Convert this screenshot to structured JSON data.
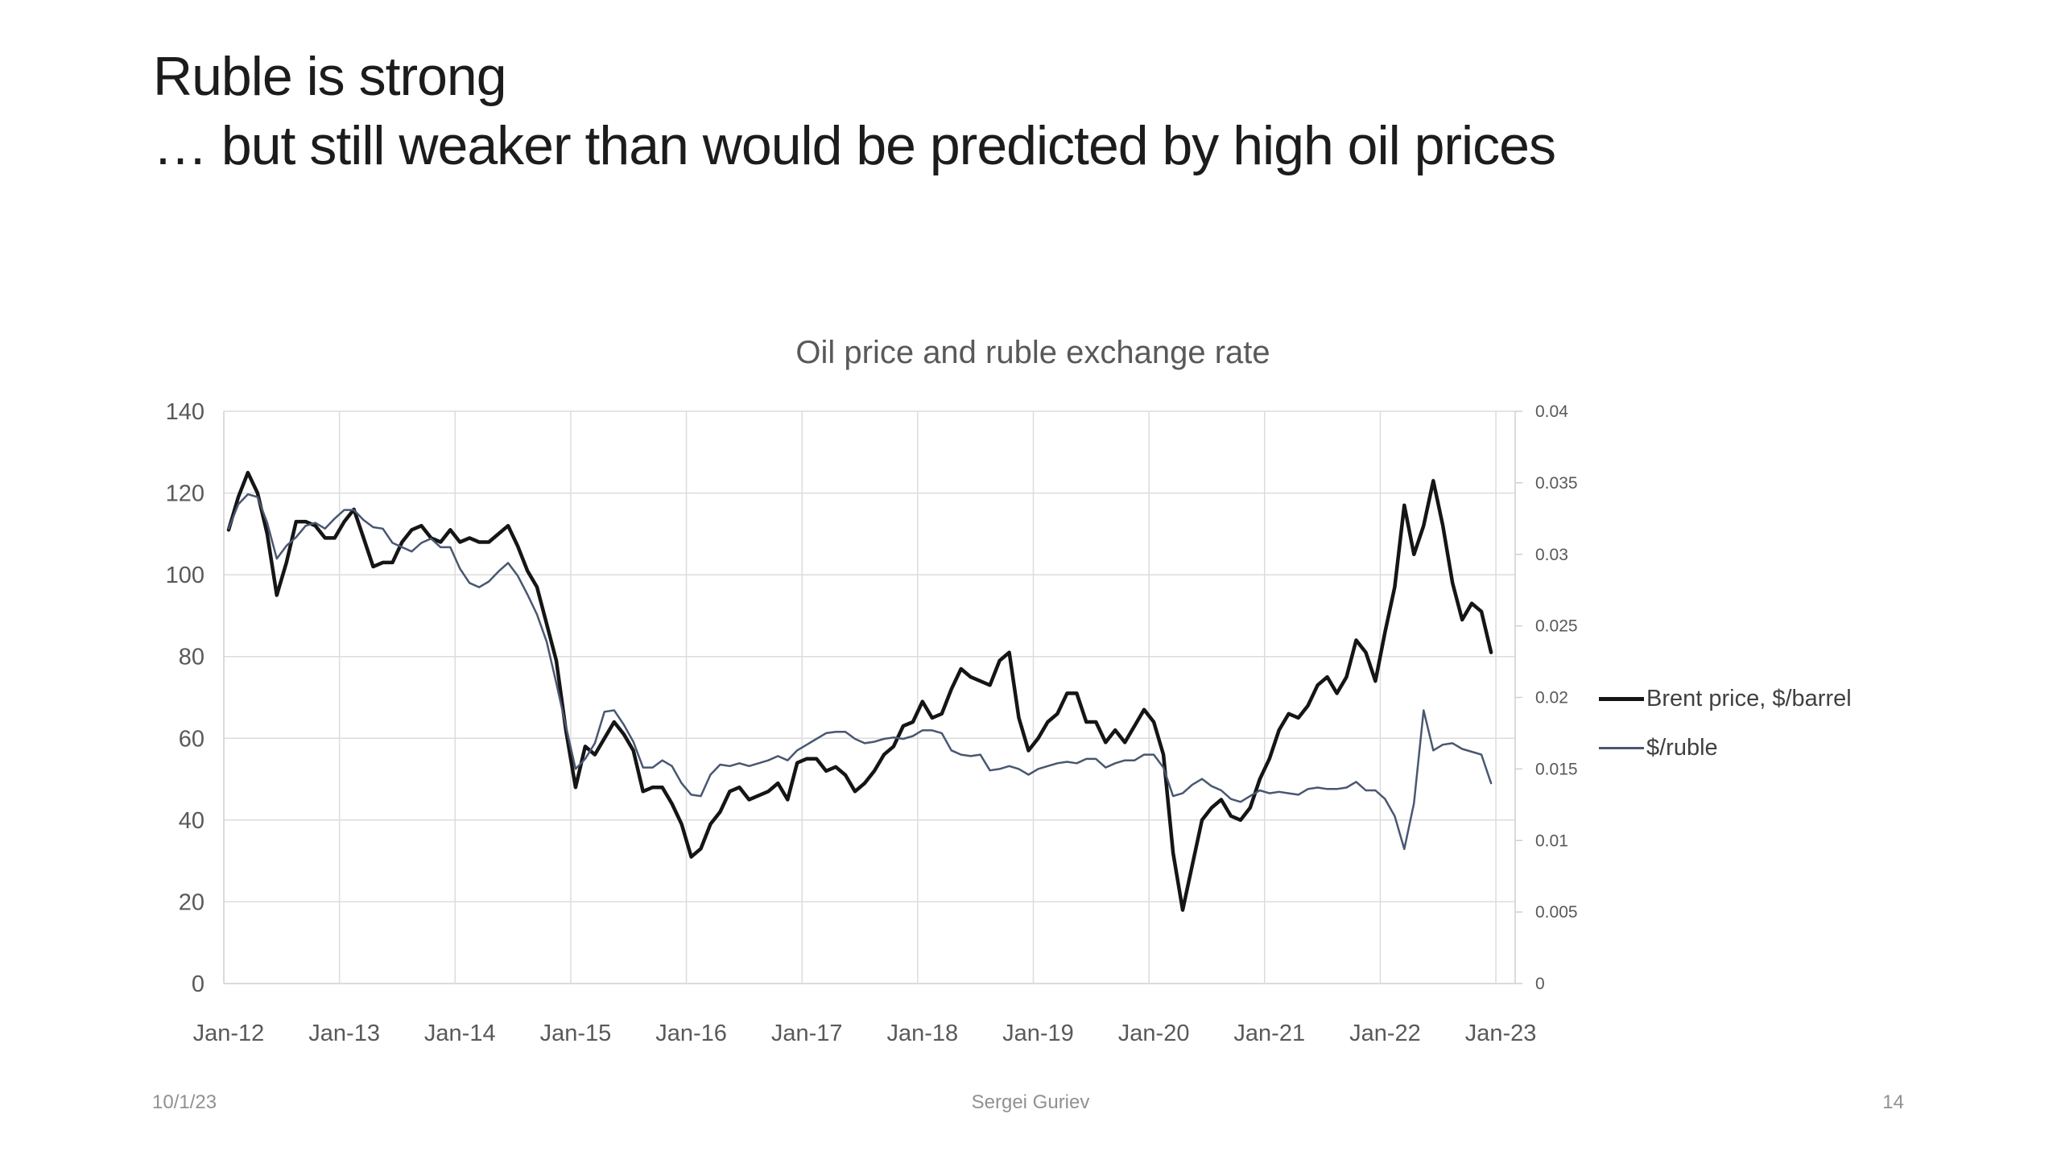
{
  "slide": {
    "title_line1": "Ruble is strong",
    "title_line2": "… but still weaker than would be predicted by high oil prices",
    "footer": {
      "date": "10/1/23",
      "author": "Sergei Guriev",
      "page": "14"
    }
  },
  "chart_data": {
    "type": "line",
    "title": "Oil price and ruble exchange rate",
    "grid": true,
    "legend_position": "right",
    "frequency": "monthly",
    "start_month": "2012-01",
    "end_month": "2022-12",
    "x_tick_labels": [
      "Jan-12",
      "Jan-13",
      "Jan-14",
      "Jan-15",
      "Jan-16",
      "Jan-17",
      "Jan-18",
      "Jan-19",
      "Jan-20",
      "Jan-21",
      "Jan-22",
      "Jan-23"
    ],
    "left_axis": {
      "min": 0,
      "max": 140,
      "tick_values": [
        0,
        20,
        40,
        60,
        80,
        100,
        120,
        140
      ],
      "tick_labels": [
        "0",
        "20",
        "40",
        "60",
        "80",
        "100",
        "120",
        "140"
      ]
    },
    "right_axis": {
      "min": 0,
      "max": 0.04,
      "tick_values": [
        0,
        0.005,
        0.01,
        0.015,
        0.02,
        0.025,
        0.03,
        0.035,
        0.04
      ],
      "tick_labels": [
        "0",
        "0.005",
        "0.01",
        "0.015",
        "0.02",
        "0.025",
        "0.03",
        "0.035",
        "0.04"
      ]
    },
    "series": [
      {
        "name": "Brent price, $/barrel",
        "axis": "left",
        "color": "#151515",
        "width": 4.5,
        "values": [
          111,
          119,
          125,
          120,
          110,
          95,
          103,
          113,
          113,
          112,
          109,
          109,
          113,
          116,
          109,
          102,
          103,
          103,
          108,
          111,
          112,
          109,
          108,
          111,
          108,
          109,
          108,
          108,
          110,
          112,
          107,
          101,
          97,
          88,
          79,
          62,
          48,
          58,
          56,
          60,
          64,
          61,
          57,
          47,
          48,
          48,
          44,
          39,
          31,
          33,
          39,
          42,
          47,
          48,
          45,
          46,
          47,
          49,
          45,
          54,
          55,
          55,
          52,
          53,
          51,
          47,
          49,
          52,
          56,
          58,
          63,
          64,
          69,
          65,
          66,
          72,
          77,
          75,
          74,
          73,
          79,
          81,
          65,
          57,
          60,
          64,
          66,
          71,
          71,
          64,
          64,
          59,
          62,
          59,
          63,
          67,
          64,
          56,
          32,
          18,
          29,
          40,
          43,
          45,
          41,
          40,
          43,
          50,
          55,
          62,
          66,
          65,
          68,
          73,
          75,
          71,
          75,
          84,
          81,
          74,
          86,
          97,
          117,
          105,
          112,
          123,
          112,
          98,
          89,
          93,
          91,
          81
        ]
      },
      {
        "name": "$/ruble",
        "axis": "right",
        "color": "#495771",
        "width": 2.5,
        "values": [
          0.0318,
          0.0335,
          0.0342,
          0.034,
          0.0322,
          0.0297,
          0.0306,
          0.0312,
          0.032,
          0.0322,
          0.0318,
          0.0325,
          0.0331,
          0.0331,
          0.0324,
          0.0319,
          0.0318,
          0.0308,
          0.0305,
          0.0302,
          0.0308,
          0.0311,
          0.0305,
          0.0305,
          0.029,
          0.028,
          0.0277,
          0.0281,
          0.0288,
          0.0294,
          0.0285,
          0.0272,
          0.0258,
          0.0239,
          0.021,
          0.018,
          0.015,
          0.0157,
          0.0168,
          0.019,
          0.0191,
          0.0181,
          0.0169,
          0.0151,
          0.0151,
          0.0156,
          0.0152,
          0.014,
          0.0132,
          0.0131,
          0.0146,
          0.0153,
          0.0152,
          0.0154,
          0.0152,
          0.0154,
          0.0156,
          0.0159,
          0.0156,
          0.0163,
          0.0167,
          0.0171,
          0.0175,
          0.0176,
          0.0176,
          0.0171,
          0.0168,
          0.0169,
          0.0171,
          0.0172,
          0.0171,
          0.0173,
          0.0177,
          0.0177,
          0.0175,
          0.0163,
          0.016,
          0.0159,
          0.016,
          0.0149,
          0.015,
          0.0152,
          0.015,
          0.0146,
          0.015,
          0.0152,
          0.0154,
          0.0155,
          0.0154,
          0.0157,
          0.0157,
          0.0151,
          0.0154,
          0.0156,
          0.0156,
          0.016,
          0.016,
          0.0151,
          0.0131,
          0.0133,
          0.0139,
          0.0143,
          0.0138,
          0.0135,
          0.0129,
          0.0127,
          0.0131,
          0.0135,
          0.0133,
          0.0134,
          0.0133,
          0.0132,
          0.0136,
          0.0137,
          0.0136,
          0.0136,
          0.0137,
          0.0141,
          0.0135,
          0.0135,
          0.0129,
          0.0117,
          0.0094,
          0.0126,
          0.0191,
          0.0163,
          0.0167,
          0.0168,
          0.0164,
          0.0162,
          0.016,
          0.014
        ]
      }
    ],
    "colors": {
      "gridline": "#dcdcdc",
      "axis_line": "#cfcfcf",
      "tick_text": "#595959",
      "title_text": "#595959"
    }
  }
}
